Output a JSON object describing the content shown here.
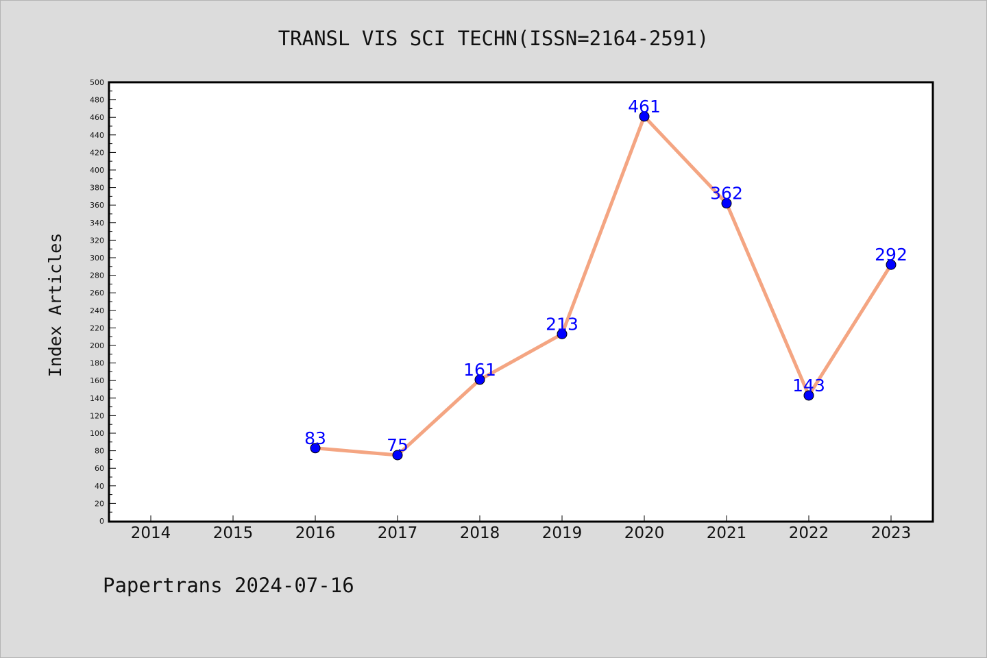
{
  "title": "TRANSL VIS SCI TECHN(ISSN=2164-2591)",
  "ylabel": "Index Articles",
  "footer": "Papertrans 2024-07-16",
  "colors": {
    "background": "#dcdcdc",
    "plot_area": "#ffffff",
    "line": "#f4a582",
    "marker": "#0000ff",
    "data_label": "#0000ff"
  },
  "chart_data": {
    "type": "line",
    "title": "TRANSL VIS SCI TECHN(ISSN=2164-2591)",
    "xlabel": "",
    "ylabel": "Index Articles",
    "categories": [
      "2014",
      "2015",
      "2016",
      "2017",
      "2018",
      "2019",
      "2020",
      "2021",
      "2022",
      "2023"
    ],
    "series": [
      {
        "x": [
          "2016",
          "2017",
          "2018",
          "2019",
          "2020",
          "2021",
          "2022",
          "2023"
        ],
        "values": [
          83,
          75,
          161,
          213,
          461,
          362,
          143,
          292
        ]
      }
    ],
    "ylim": [
      0,
      500
    ],
    "yticks": [
      0,
      20,
      40,
      60,
      80,
      100,
      120,
      140,
      160,
      180,
      200,
      220,
      240,
      260,
      280,
      300,
      320,
      340,
      360,
      380,
      400,
      420,
      440,
      460,
      480,
      500
    ],
    "grid": false,
    "legend": "none"
  }
}
